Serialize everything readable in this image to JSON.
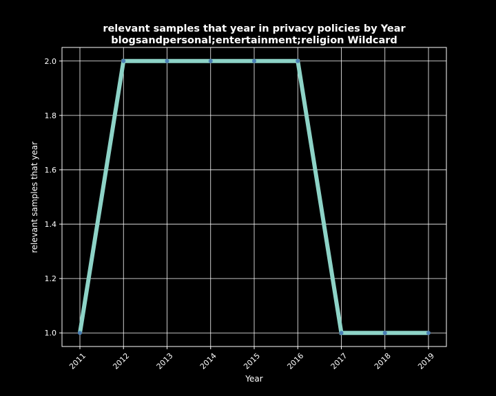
{
  "chart_data": {
    "type": "line",
    "title_line1": "relevant samples that year in privacy policies by Year",
    "title_line2": "blogsandpersonal;entertainment;religion Wildcard",
    "xlabel": "Year",
    "ylabel": "relevant samples that year",
    "x": [
      "2011",
      "2012",
      "2013",
      "2014",
      "2015",
      "2016",
      "2017",
      "2018",
      "2019"
    ],
    "series": [
      {
        "values": [
          1.0,
          2.0,
          2.0,
          2.0,
          2.0,
          2.0,
          1.0,
          1.0,
          1.0
        ],
        "color": "#8dd3c7",
        "marker_color": "#4a7fb5"
      }
    ],
    "ylim": [
      0.95,
      2.05
    ],
    "yticks": [
      "1.0",
      "1.2",
      "1.4",
      "1.6",
      "1.8",
      "2.0"
    ],
    "grid": true,
    "background": "#000000",
    "foreground": "#ffffff"
  }
}
